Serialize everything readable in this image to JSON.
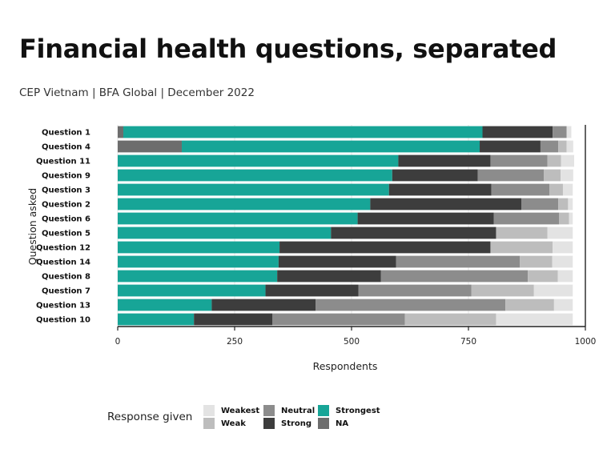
{
  "chart_data": {
    "type": "bar",
    "orientation": "horizontal",
    "stacked": true,
    "title": "Financial health questions, separated",
    "subtitle": "CEP Vietnam | BFA Global | December 2022",
    "xlabel": "Respondents",
    "ylabel": "Question asked",
    "xlim": [
      0,
      1000
    ],
    "xticks": [
      0,
      250,
      500,
      750,
      1000
    ],
    "grid": true,
    "legend_title": "Response given",
    "legend_position": "bottom",
    "categories": [
      "Question 1",
      "Question 4",
      "Question 11",
      "Question 9",
      "Question 3",
      "Question 2",
      "Question 6",
      "Question 5",
      "Question 12",
      "Question 14",
      "Question 8",
      "Question 7",
      "Question 13",
      "Question 10"
    ],
    "series": [
      {
        "name": "NA",
        "color": "#6d6d6d",
        "values": [
          12,
          137,
          0,
          0,
          0,
          0,
          0,
          0,
          0,
          0,
          0,
          0,
          0,
          0
        ]
      },
      {
        "name": "Strongest",
        "color": "#17a597",
        "values": [
          768,
          637,
          600,
          587,
          580,
          540,
          513,
          456,
          346,
          344,
          341,
          316,
          201,
          163
        ]
      },
      {
        "name": "Strong",
        "color": "#3d3d3d",
        "values": [
          150,
          130,
          197,
          183,
          219,
          323,
          291,
          353,
          451,
          251,
          222,
          199,
          222,
          168
        ]
      },
      {
        "name": "Neutral",
        "color": "#8c8c8c",
        "values": [
          30,
          38,
          122,
          141,
          124,
          79,
          140,
          0,
          0,
          265,
          314,
          241,
          406,
          283
        ]
      },
      {
        "name": "Weak",
        "color": "#bdbdbd",
        "values": [
          0,
          18,
          29,
          36,
          29,
          21,
          21,
          110,
          133,
          69,
          64,
          134,
          104,
          195
        ]
      },
      {
        "name": "Weakest",
        "color": "#e3e3e3",
        "values": [
          10,
          14,
          28,
          27,
          21,
          10,
          8,
          54,
          43,
          44,
          32,
          83,
          40,
          164
        ]
      }
    ]
  },
  "legend": [
    {
      "name": "Weakest",
      "color": "#e3e3e3"
    },
    {
      "name": "Weak",
      "color": "#bdbdbd"
    },
    {
      "name": "Neutral",
      "color": "#8c8c8c"
    },
    {
      "name": "Strong",
      "color": "#3d3d3d"
    },
    {
      "name": "Strongest",
      "color": "#17a597"
    },
    {
      "name": "NA",
      "color": "#6d6d6d"
    }
  ]
}
